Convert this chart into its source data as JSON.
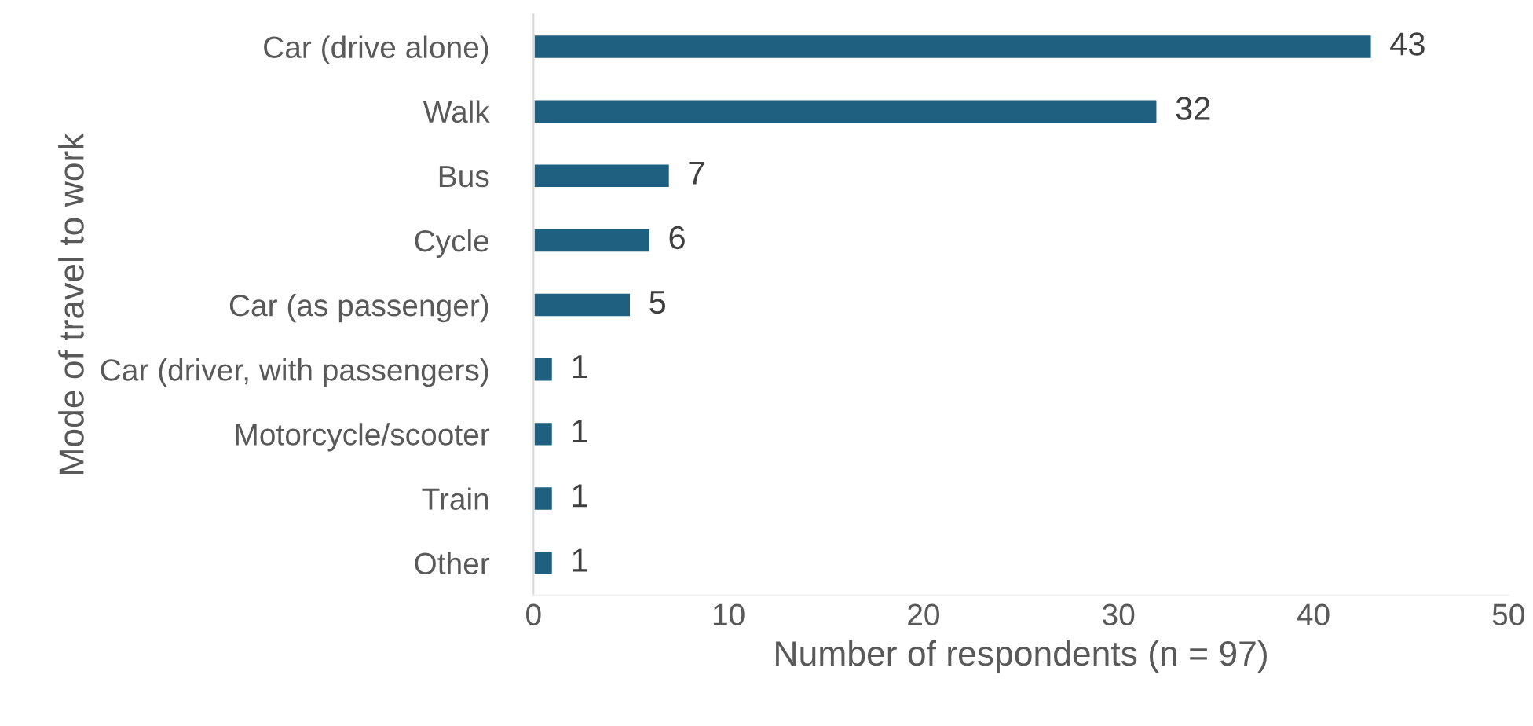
{
  "chart_data": {
    "type": "bar",
    "orientation": "horizontal",
    "categories": [
      "Car (drive alone)",
      "Walk",
      "Bus",
      "Cycle",
      "Car (as passenger)",
      "Car (driver, with passengers)",
      "Motorcycle/scooter",
      "Train",
      "Other"
    ],
    "values": [
      43,
      32,
      7,
      6,
      5,
      1,
      1,
      1,
      1
    ],
    "color": "#1f5f80",
    "xlim": [
      0,
      50
    ],
    "xticks": [
      0,
      10,
      20,
      30,
      40,
      50
    ],
    "xlabel": "Number of respondents (n = 97)",
    "ylabel": "Mode of travel to work",
    "data_labels": true,
    "grid": false,
    "legend": false
  }
}
